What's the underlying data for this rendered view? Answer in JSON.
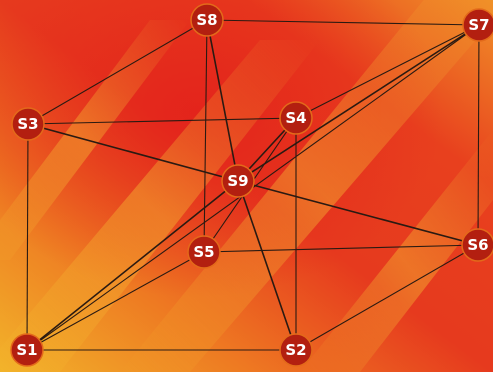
{
  "colors": {
    "background_warm": "#f0a020",
    "background_hot": "#e82820",
    "node_fill": "#b31f10",
    "node_stroke": "#e36a1a",
    "edge": "#2a1a12"
  },
  "nodes": [
    {
      "id": "S1",
      "label": "S1"
    },
    {
      "id": "S2",
      "label": "S2"
    },
    {
      "id": "S3",
      "label": "S3"
    },
    {
      "id": "S4",
      "label": "S4"
    },
    {
      "id": "S5",
      "label": "S5"
    },
    {
      "id": "S6",
      "label": "S6"
    },
    {
      "id": "S7",
      "label": "S7"
    },
    {
      "id": "S8",
      "label": "S8"
    },
    {
      "id": "S9",
      "label": "S9"
    }
  ],
  "edges": [
    [
      "S1",
      "S2"
    ],
    [
      "S1",
      "S3"
    ],
    [
      "S1",
      "S5"
    ],
    [
      "S1",
      "S9"
    ],
    [
      "S1",
      "S7"
    ],
    [
      "S2",
      "S6"
    ],
    [
      "S2",
      "S4"
    ],
    [
      "S2",
      "S9"
    ],
    [
      "S3",
      "S4"
    ],
    [
      "S3",
      "S8"
    ],
    [
      "S3",
      "S9"
    ],
    [
      "S4",
      "S7"
    ],
    [
      "S4",
      "S5"
    ],
    [
      "S4",
      "S9"
    ],
    [
      "S5",
      "S6"
    ],
    [
      "S5",
      "S8"
    ],
    [
      "S6",
      "S7"
    ],
    [
      "S6",
      "S9"
    ],
    [
      "S7",
      "S8"
    ],
    [
      "S7",
      "S9"
    ],
    [
      "S8",
      "S9"
    ]
  ]
}
